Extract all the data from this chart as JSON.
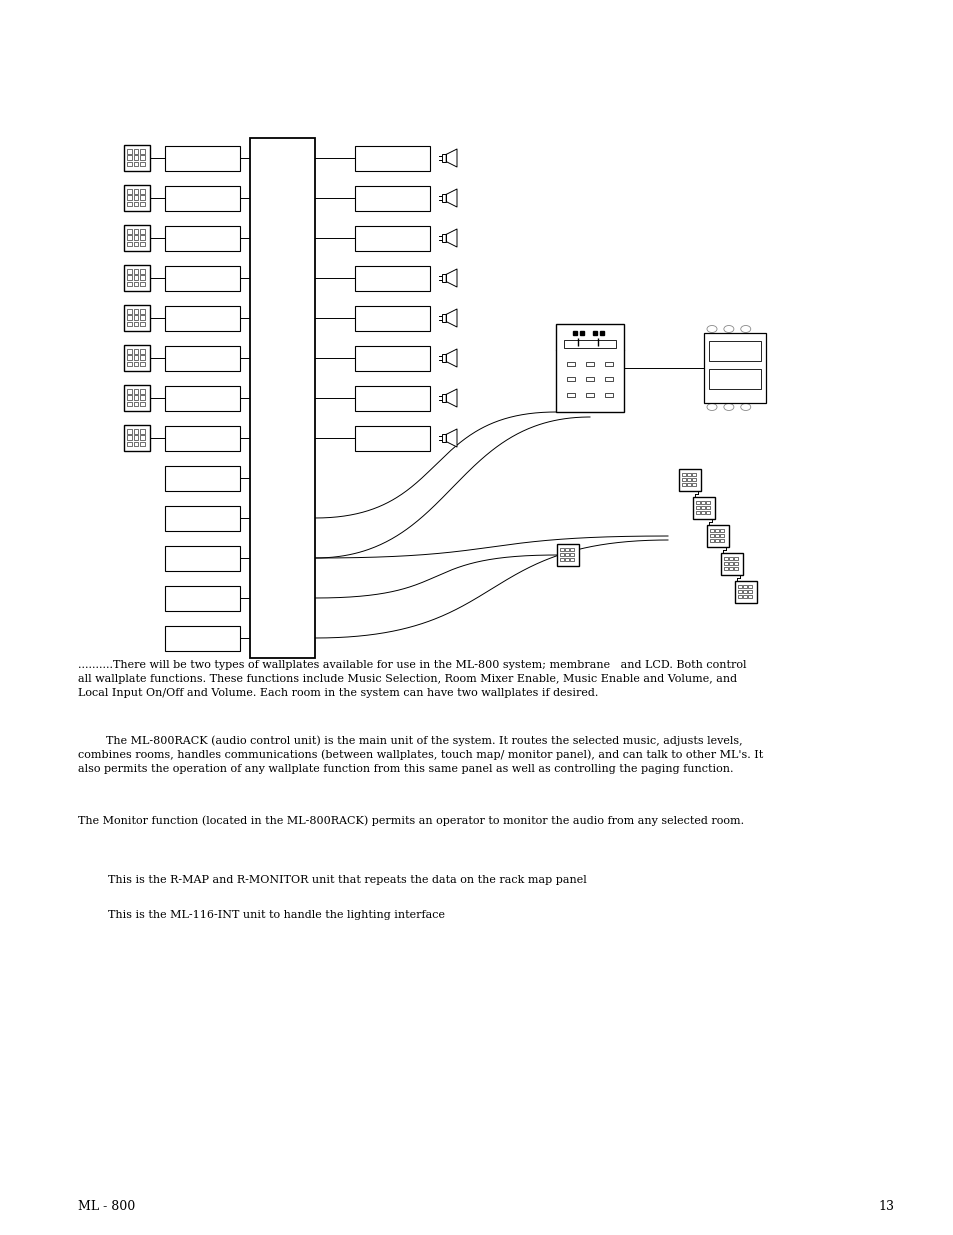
{
  "bg_color": "#ffffff",
  "fig_width": 9.54,
  "fig_height": 12.35,
  "dpi": 100,
  "page_number": "13",
  "footer_left": "ML - 800",
  "paragraph1": "..........There will be two types of wallplates available for use in the ML-800 system; membrane   and LCD. Both control\nall wallplate functions. These functions include Music Selection, Room Mixer Enable, Music Enable and Volume, and\nLocal Input On/Off and Volume. Each room in the system can have two wallplates if desired.",
  "paragraph2": "        The ML-800RACK (audio control unit) is the main unit of the system. It routes the selected music, adjusts levels,\ncombines rooms, handles communications (between wallplates, touch map/ monitor panel), and can talk to other ML's. It\nalso permits the operation of any wallplate function from this same panel as well as controlling the paging function.",
  "paragraph3": "The Monitor function (located in the ML-800RACK) permits an operator to monitor the audio from any selected room.",
  "bullet1": "This is the R-MAP and R-MONITOR unit that repeats the data on the rack map panel",
  "bullet2": "This is the ML-116-INT unit to handle the lighting interface"
}
